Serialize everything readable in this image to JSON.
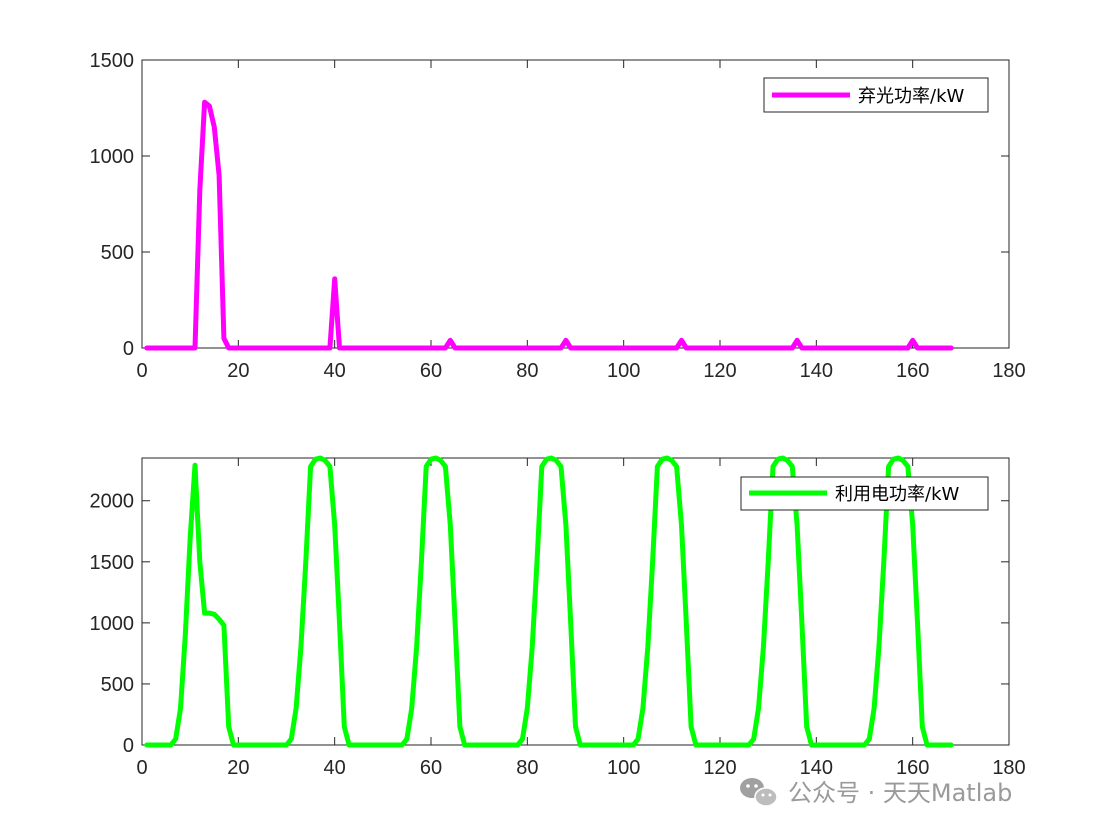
{
  "chart_data": [
    {
      "type": "line",
      "xlim": [
        0,
        180
      ],
      "ylim": [
        0,
        1500
      ],
      "xticks": [
        0,
        20,
        40,
        60,
        80,
        100,
        120,
        140,
        160,
        180
      ],
      "yticks": [
        0,
        500,
        1000,
        1500
      ],
      "grid": false,
      "legend_position": "top-right",
      "series": [
        {
          "name": "弃光功率/kW",
          "color": "#ff00ff",
          "x": [
            1,
            11,
            12,
            13,
            14,
            15,
            16,
            17,
            18,
            19,
            39,
            40,
            41,
            63,
            64,
            65,
            87,
            88,
            89,
            111,
            112,
            113,
            135,
            136,
            137,
            159,
            160,
            161,
            168
          ],
          "y": [
            0,
            0,
            820,
            1280,
            1260,
            1150,
            900,
            50,
            0,
            0,
            0,
            360,
            0,
            0,
            40,
            0,
            0,
            40,
            0,
            0,
            40,
            0,
            0,
            40,
            0,
            0,
            40,
            0,
            0
          ]
        }
      ]
    },
    {
      "type": "line",
      "xlim": [
        0,
        180
      ],
      "ylim": [
        0,
        2350
      ],
      "xticks": [
        0,
        20,
        40,
        60,
        80,
        100,
        120,
        140,
        160,
        180
      ],
      "yticks": [
        0,
        500,
        1000,
        1500,
        2000
      ],
      "grid": false,
      "legend_position": "top-right",
      "series": [
        {
          "name": "利用电功率/kW",
          "color": "#00ff00",
          "x": [
            1,
            6,
            7,
            8,
            9,
            10,
            11,
            12,
            13,
            14,
            15,
            16,
            17,
            18,
            19,
            30,
            31,
            32,
            33,
            34,
            35,
            36,
            37,
            38,
            39,
            40,
            41,
            42,
            43,
            54,
            55,
            56,
            57,
            58,
            59,
            60,
            61,
            62,
            63,
            64,
            65,
            66,
            67,
            78,
            79,
            80,
            81,
            82,
            83,
            84,
            85,
            86,
            87,
            88,
            89,
            90,
            91,
            102,
            103,
            104,
            105,
            106,
            107,
            108,
            109,
            110,
            111,
            112,
            113,
            114,
            115,
            126,
            127,
            128,
            129,
            130,
            131,
            132,
            133,
            134,
            135,
            136,
            137,
            138,
            139,
            150,
            151,
            152,
            153,
            154,
            155,
            156,
            157,
            158,
            159,
            160,
            161,
            162,
            163,
            168
          ],
          "y": [
            0,
            0,
            50,
            300,
            900,
            1700,
            2290,
            1500,
            1080,
            1080,
            1070,
            1030,
            980,
            150,
            0,
            0,
            50,
            300,
            800,
            1500,
            2280,
            2340,
            2350,
            2330,
            2280,
            1800,
            1000,
            150,
            0,
            0,
            50,
            300,
            800,
            1500,
            2280,
            2340,
            2350,
            2330,
            2280,
            1800,
            1000,
            150,
            0,
            0,
            50,
            300,
            800,
            1500,
            2280,
            2340,
            2350,
            2330,
            2280,
            1800,
            1000,
            150,
            0,
            0,
            50,
            300,
            800,
            1500,
            2280,
            2340,
            2350,
            2330,
            2280,
            1800,
            1000,
            150,
            0,
            0,
            50,
            300,
            800,
            1500,
            2280,
            2340,
            2350,
            2330,
            2280,
            1800,
            1000,
            150,
            0,
            0,
            50,
            300,
            800,
            1500,
            2280,
            2340,
            2350,
            2330,
            2280,
            1800,
            1000,
            150,
            0,
            0
          ]
        }
      ]
    }
  ],
  "watermark": {
    "text": "公众号 · 天天Matlab",
    "icon": "wechat-icon",
    "color": "#9a9a9a"
  }
}
